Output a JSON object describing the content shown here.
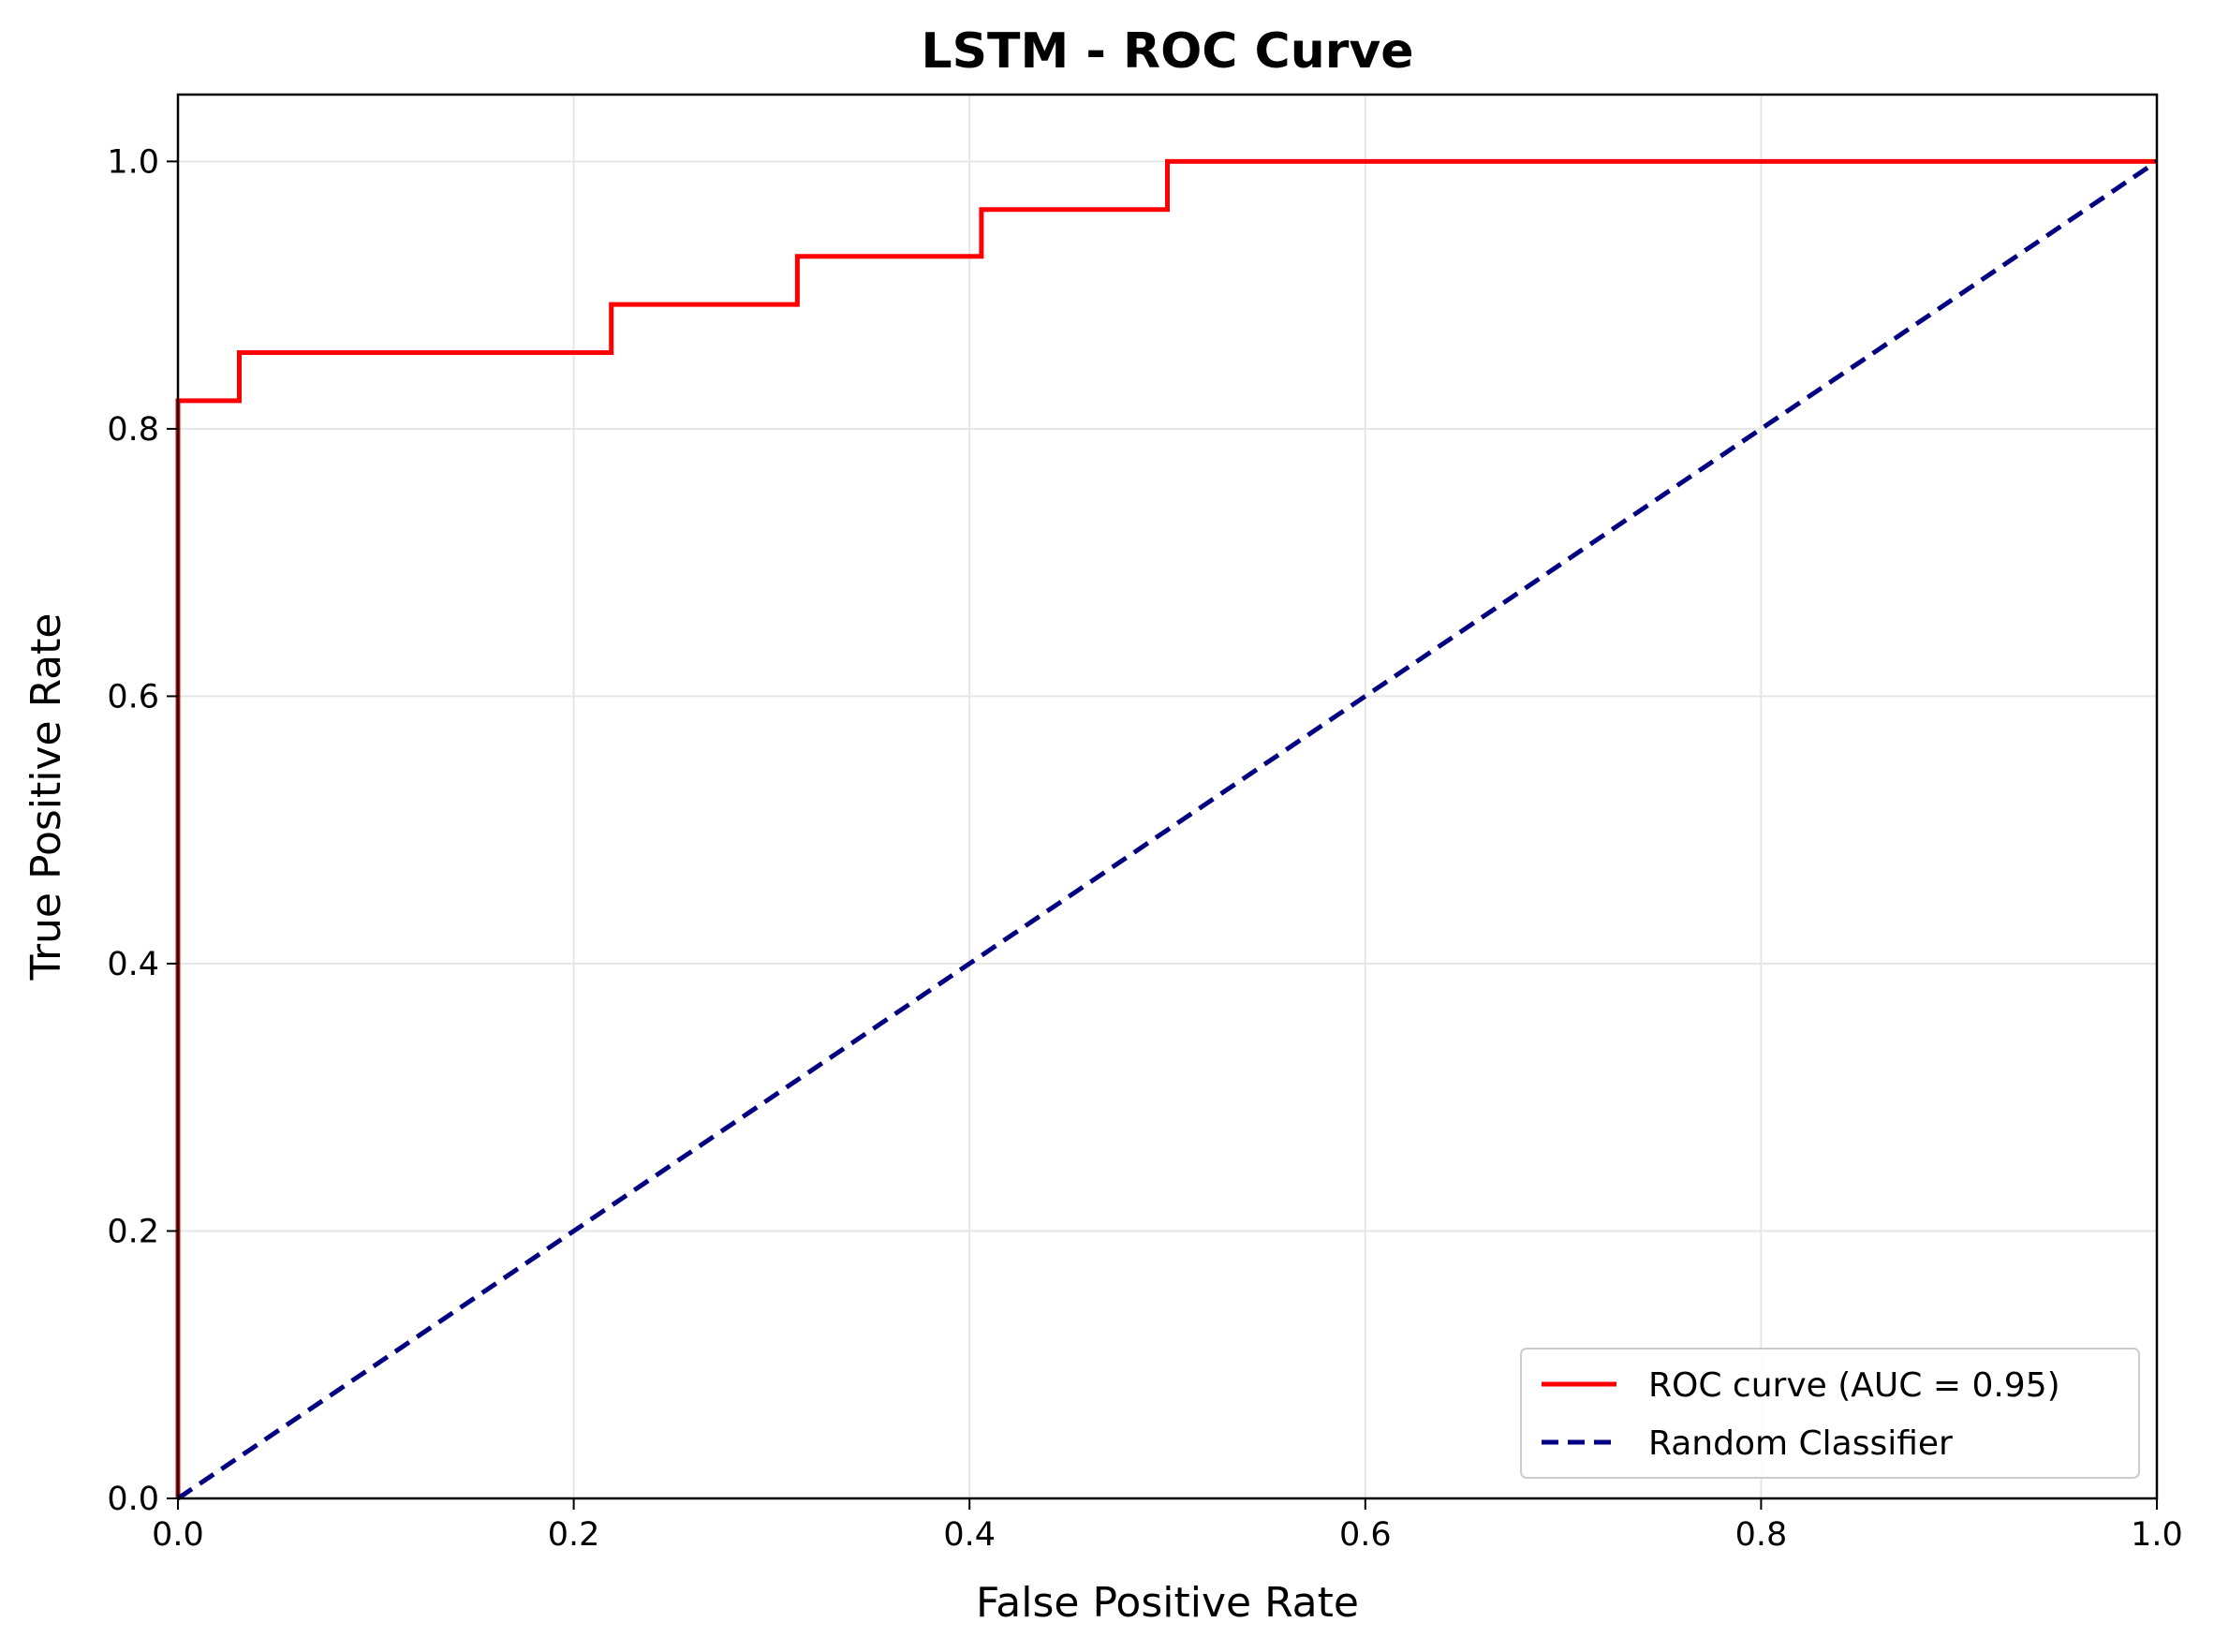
{
  "chart_data": {
    "type": "line",
    "title": "LSTM - ROC Curve",
    "xlabel": "False Positive Rate",
    "ylabel": "True Positive Rate",
    "xlim": [
      0.0,
      1.0
    ],
    "ylim": [
      0.0,
      1.05
    ],
    "x_ticks": [
      "0.0",
      "0.2",
      "0.4",
      "0.6",
      "0.8",
      "1.0"
    ],
    "y_ticks": [
      "0.0",
      "0.2",
      "0.4",
      "0.6",
      "0.8",
      "1.0"
    ],
    "grid": true,
    "legend_position": "lower right",
    "series": [
      {
        "name": "ROC curve (AUC = 0.95)",
        "color": "#ff0000",
        "style": "solid",
        "x": [
          0.0,
          0.0,
          0.031,
          0.031,
          0.219,
          0.219,
          0.313,
          0.313,
          0.406,
          0.406,
          0.5,
          0.5,
          1.0
        ],
        "y": [
          0.0,
          0.821,
          0.821,
          0.857,
          0.857,
          0.893,
          0.893,
          0.929,
          0.929,
          0.964,
          0.964,
          1.0,
          1.0
        ]
      },
      {
        "name": "Random Classifier",
        "color": "#000080",
        "style": "dashed",
        "x": [
          0.0,
          1.0
        ],
        "y": [
          0.0,
          1.0
        ]
      }
    ]
  }
}
